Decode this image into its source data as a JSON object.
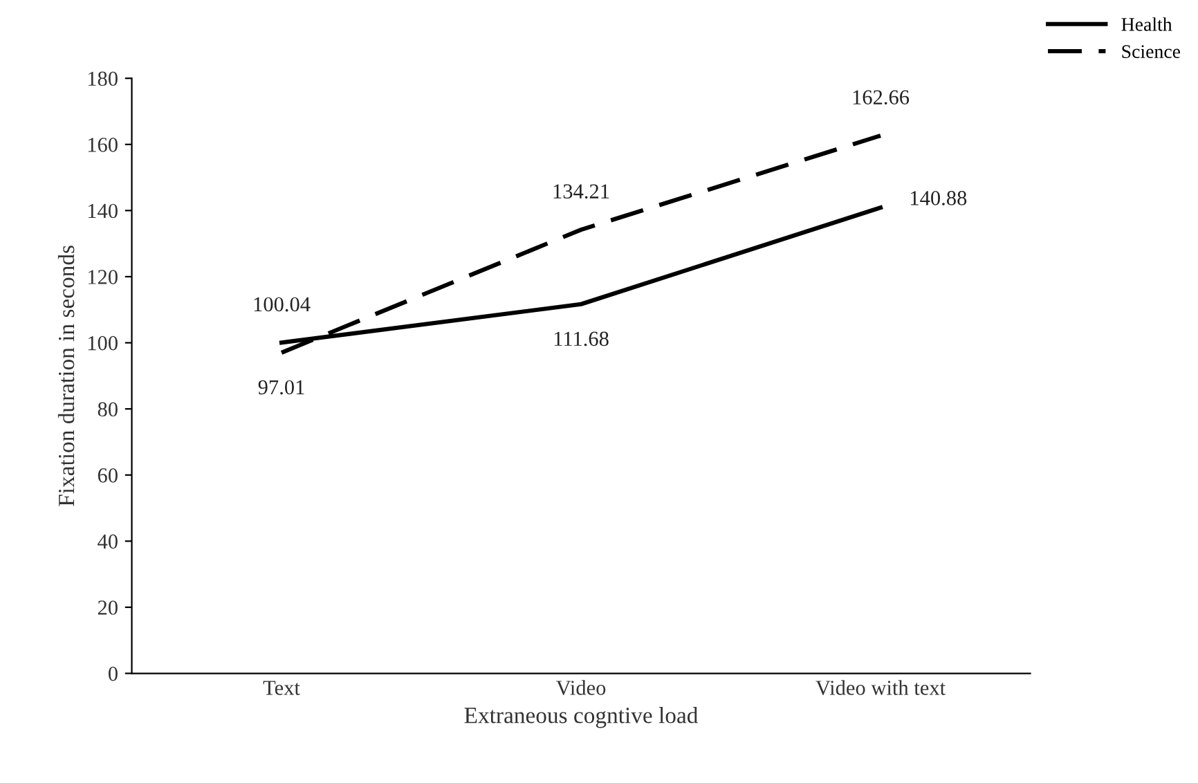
{
  "chart_data": {
    "type": "line",
    "xlabel": "Extraneous cogntive load",
    "ylabel": "Fixation duration in seconds",
    "categories": [
      "Text",
      "Video",
      "Video with text"
    ],
    "series": [
      {
        "name": "Health",
        "color": "#000000",
        "line_style": "solid",
        "values": [
          100.04,
          111.68,
          140.88
        ]
      },
      {
        "name": "Science",
        "color": "#000000",
        "line_style": "dashed",
        "values": [
          97.01,
          134.21,
          162.66
        ]
      }
    ],
    "ylim": [
      0,
      180
    ],
    "yticks": [
      0,
      20,
      40,
      60,
      80,
      100,
      120,
      140,
      160,
      180
    ],
    "grid": false,
    "legend": "top right",
    "marker": "none",
    "data_labels": true
  }
}
